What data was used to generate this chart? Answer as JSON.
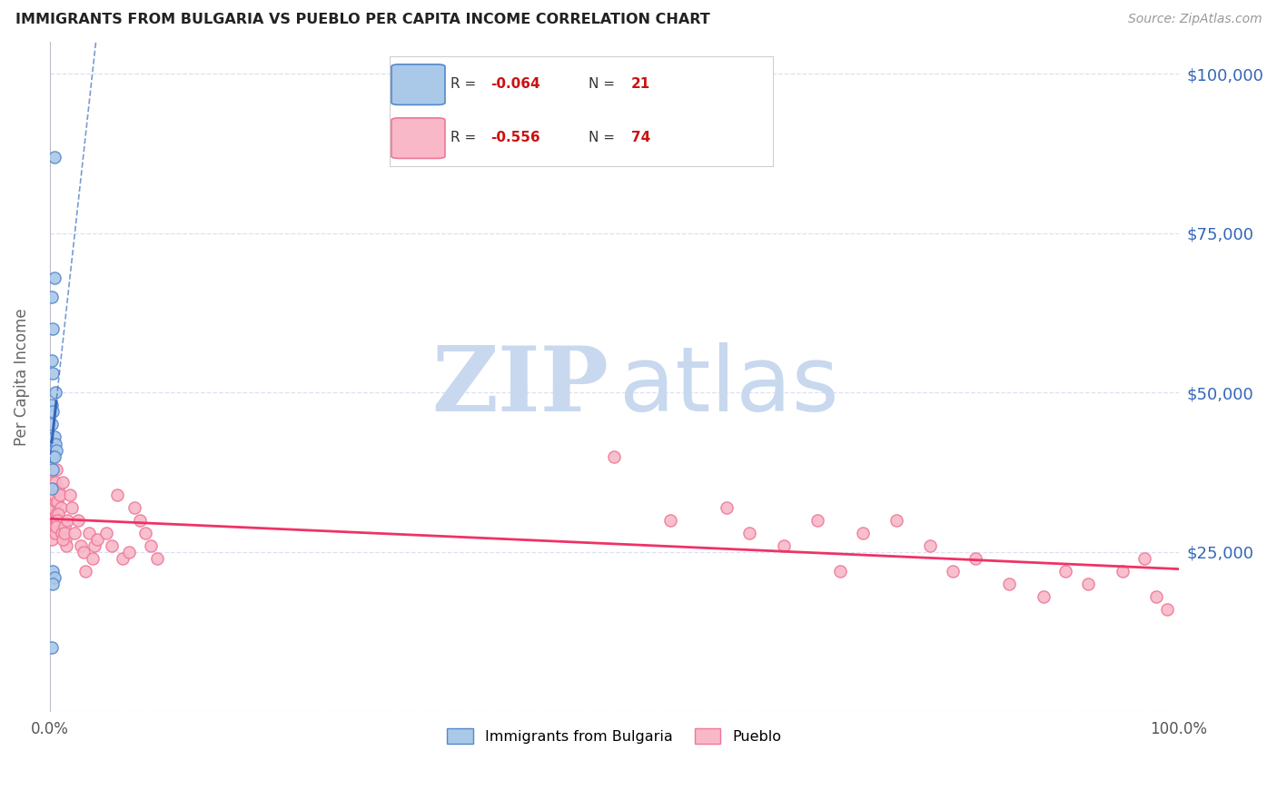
{
  "title": "IMMIGRANTS FROM BULGARIA VS PUEBLO PER CAPITA INCOME CORRELATION CHART",
  "source": "Source: ZipAtlas.com",
  "ylabel": "Per Capita Income",
  "watermark_zip": "ZIP",
  "watermark_atlas": "atlas",
  "xlim": [
    0.0,
    1.0
  ],
  "ylim": [
    0,
    105000
  ],
  "yticks": [
    0,
    25000,
    50000,
    75000,
    100000
  ],
  "ytick_labels": [
    "",
    "$25,000",
    "$50,000",
    "$75,000",
    "$100,000"
  ],
  "xtick_positions": [
    0.0,
    1.0
  ],
  "xtick_labels": [
    "0.0%",
    "100.0%"
  ],
  "blue_x": [
    0.002,
    0.004,
    0.002,
    0.003,
    0.002,
    0.003,
    0.004,
    0.005,
    0.003,
    0.002,
    0.004,
    0.005,
    0.006,
    0.003,
    0.004,
    0.003,
    0.002,
    0.003,
    0.004,
    0.003,
    0.002
  ],
  "blue_y": [
    48000,
    87000,
    65000,
    60000,
    55000,
    53000,
    68000,
    50000,
    47000,
    45000,
    43000,
    42000,
    41000,
    40000,
    40000,
    38000,
    35000,
    22000,
    21000,
    20000,
    10000
  ],
  "pink_x": [
    0.001,
    0.002,
    0.003,
    0.001,
    0.002,
    0.004,
    0.003,
    0.005,
    0.006,
    0.004,
    0.003,
    0.005,
    0.004,
    0.003,
    0.002,
    0.006,
    0.007,
    0.008,
    0.006,
    0.005,
    0.009,
    0.01,
    0.008,
    0.007,
    0.006,
    0.012,
    0.011,
    0.013,
    0.014,
    0.015,
    0.012,
    0.013,
    0.016,
    0.018,
    0.02,
    0.022,
    0.025,
    0.028,
    0.03,
    0.032,
    0.035,
    0.038,
    0.04,
    0.042,
    0.05,
    0.055,
    0.06,
    0.065,
    0.07,
    0.075,
    0.08,
    0.085,
    0.09,
    0.095,
    0.5,
    0.55,
    0.6,
    0.62,
    0.65,
    0.68,
    0.7,
    0.72,
    0.75,
    0.78,
    0.8,
    0.82,
    0.85,
    0.88,
    0.9,
    0.92,
    0.95,
    0.97,
    0.98,
    0.99
  ],
  "pink_y": [
    32000,
    36000,
    34000,
    28000,
    30000,
    35000,
    32000,
    33000,
    38000,
    34000,
    30000,
    36000,
    29000,
    28000,
    27000,
    31000,
    33000,
    35000,
    30000,
    28000,
    34000,
    32000,
    31000,
    30000,
    29000,
    36000,
    28000,
    29000,
    27000,
    26000,
    27000,
    28000,
    30000,
    34000,
    32000,
    28000,
    30000,
    26000,
    25000,
    22000,
    28000,
    24000,
    26000,
    27000,
    28000,
    26000,
    34000,
    24000,
    25000,
    32000,
    30000,
    28000,
    26000,
    24000,
    40000,
    30000,
    32000,
    28000,
    26000,
    30000,
    22000,
    28000,
    30000,
    26000,
    22000,
    24000,
    20000,
    18000,
    22000,
    20000,
    22000,
    24000,
    18000,
    16000
  ],
  "blue_scatter_color": "#aac8e8",
  "blue_edge_color": "#5588cc",
  "pink_scatter_color": "#f8b8c8",
  "pink_edge_color": "#ee7799",
  "blue_line_color": "#3366bb",
  "pink_line_color": "#ee3366",
  "axis_label_color": "#3366bb",
  "title_color": "#222222",
  "source_color": "#999999",
  "grid_color": "#dde0ee",
  "watermark_color": "#c8d8ee",
  "R_blue": -0.064,
  "N_blue": 21,
  "R_pink": -0.556,
  "N_pink": 74,
  "legend_label_blue": "Immigrants from Bulgaria",
  "legend_label_pink": "Pueblo",
  "legend_R_color": "#cc1111",
  "legend_text_color": "#333333"
}
